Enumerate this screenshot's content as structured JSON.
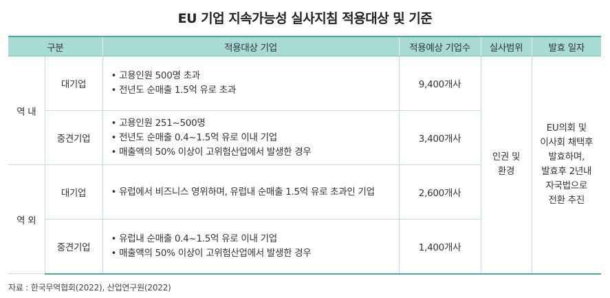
{
  "title": "EU 기업 지속가능성 실사지침 적용대상 및 기준",
  "headers": {
    "category": "구분",
    "target": "적용대상 기업",
    "expected_count": "적용예상 기업수",
    "scope": "실사범위",
    "effective_date": "발효 일자"
  },
  "regions": [
    {
      "label": "역 내",
      "rows": [
        {
          "size": "대기업",
          "criteria": [
            "고용인원 500명 초과",
            "전년도 순매출 1.5억 유로 초과"
          ],
          "count": "9,400개사"
        },
        {
          "size": "중견기업",
          "criteria": [
            "고용인원 251~500명",
            "전년도 순매출 0.4~1.5억 유로 이내 기업",
            "매출액의 50% 이상이 고위험산업에서 발생한 경우"
          ],
          "count": "3,400개사"
        }
      ]
    },
    {
      "label": "역 외",
      "rows": [
        {
          "size": "대기업",
          "criteria": [
            "유럽에서 비즈니스 영위하며, 유럽내 순매출 1.5억 유로 초과인 기업"
          ],
          "count": "2,600개사"
        },
        {
          "size": "중견기업",
          "criteria": [
            "유럽내 순매출 0.4~1.5억 유로 이내 기업",
            "매출액의 50% 이상이 고위험산업에서 발생한 경우"
          ],
          "count": "1,400개사"
        }
      ]
    }
  ],
  "scope_lines": [
    "인권 및",
    "환경"
  ],
  "date_lines": [
    "EU의회 및",
    "이사회 채택후",
    "발효하며,",
    "발효후 2년내",
    "자국법으로",
    "전환 추진"
  ],
  "source": "자료 : 한국무역협회(2022), 산업연구원(2022)",
  "colors": {
    "header_bg": "#a8dad6",
    "rule": "#49a7a0",
    "cell_border": "#bfe0dd"
  }
}
